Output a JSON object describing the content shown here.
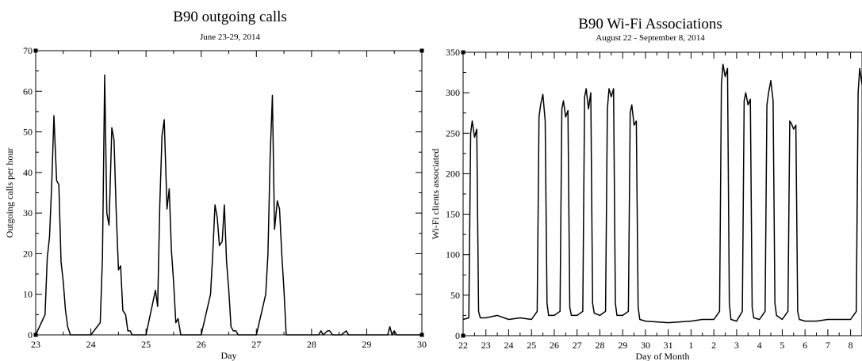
{
  "chart_data": [
    {
      "type": "line",
      "title": "B90 outgoing calls",
      "subtitle": "June 23-29, 2014",
      "xlabel": "Day",
      "ylabel": "Outgoing calls per hour",
      "xlim": [
        23,
        30
      ],
      "ylim": [
        0,
        70
      ],
      "grid": false,
      "x_ticks": [
        23,
        24,
        25,
        26,
        27,
        28,
        29,
        30
      ],
      "x_tick_labels": [
        "23",
        "24",
        "25",
        "26",
        "27",
        "28",
        "29",
        "30"
      ],
      "y_ticks": [
        0,
        10,
        20,
        30,
        40,
        50,
        60,
        70
      ],
      "y_tick_labels": [
        "0",
        "10",
        "20",
        "30",
        "40",
        "50",
        "60",
        "70"
      ],
      "series": [
        {
          "x": [
            23.0,
            23.17,
            23.21,
            23.25,
            23.29,
            23.33,
            23.38,
            23.42,
            23.46,
            23.5,
            23.54,
            23.58,
            23.63,
            23.67,
            23.71,
            23.75,
            23.79,
            24.0,
            24.17,
            24.21,
            24.25,
            24.29,
            24.33,
            24.38,
            24.42,
            24.46,
            24.5,
            24.54,
            24.58,
            24.63,
            24.67,
            24.71,
            24.75,
            24.79,
            24.83,
            25.0,
            25.17,
            25.21,
            25.25,
            25.29,
            25.33,
            25.38,
            25.42,
            25.46,
            25.5,
            25.54,
            25.58,
            25.63,
            25.67,
            25.71,
            25.75,
            26.0,
            26.17,
            26.21,
            26.25,
            26.29,
            26.33,
            26.38,
            26.42,
            26.46,
            26.5,
            26.54,
            26.58,
            26.63,
            26.67,
            26.71,
            26.75,
            26.79,
            27.0,
            27.17,
            27.21,
            27.25,
            27.29,
            27.33,
            27.38,
            27.42,
            27.46,
            27.5,
            27.54,
            27.58,
            27.63,
            27.67,
            27.71,
            27.75,
            28.0,
            28.13,
            28.17,
            28.21,
            28.29,
            28.33,
            28.38,
            28.42,
            28.46,
            28.5,
            28.54,
            28.63,
            28.67,
            28.71,
            28.75,
            29.0,
            29.38,
            29.42,
            29.46,
            29.5,
            29.54,
            29.58,
            30.0
          ],
          "y": [
            0,
            5,
            19,
            24,
            37,
            54,
            38,
            37,
            18,
            13,
            6,
            2,
            0,
            0,
            0,
            0,
            0,
            0,
            3,
            19,
            64,
            30,
            27,
            51,
            48,
            30,
            16,
            17,
            6,
            5,
            1,
            1,
            0,
            0,
            0,
            0,
            11,
            7,
            32,
            49,
            53,
            31,
            36,
            21,
            13,
            3,
            4,
            0,
            0,
            0,
            0,
            0,
            10,
            20,
            32,
            29,
            22,
            23,
            32,
            18,
            11,
            2,
            1,
            1,
            0,
            0,
            0,
            0,
            0,
            10,
            20,
            44,
            59,
            26,
            33,
            31,
            20,
            11,
            0,
            0,
            0,
            0,
            0,
            0,
            0,
            0,
            1,
            0,
            1,
            1,
            0,
            0,
            0,
            0,
            0,
            1,
            0,
            0,
            0,
            0,
            0,
            2,
            0,
            1,
            0,
            0,
            0
          ]
        }
      ]
    },
    {
      "type": "line",
      "title": "B90 Wi-Fi Associations",
      "subtitle": "August 22 - September 8, 2014",
      "xlabel": "Day of Month",
      "ylabel": "Wi-Fi clients associated",
      "xlim": [
        0,
        17.5
      ],
      "ylim": [
        0,
        350
      ],
      "grid": false,
      "x_ticks": [
        0,
        1,
        2,
        3,
        4,
        5,
        6,
        7,
        8,
        9,
        10,
        11,
        12,
        13,
        14,
        15,
        16,
        17
      ],
      "x_tick_labels": [
        "22",
        "23",
        "24",
        "25",
        "26",
        "27",
        "28",
        "29",
        "30",
        "31",
        "1",
        "2",
        "3",
        "4",
        "5",
        "6",
        "7",
        "8"
      ],
      "y_ticks": [
        0,
        50,
        100,
        150,
        200,
        250,
        300,
        350
      ],
      "y_tick_labels": [
        "0",
        "50",
        "100",
        "150",
        "200",
        "250",
        "300",
        "350"
      ],
      "series": [
        {
          "x": [
            0.0,
            0.25,
            0.33,
            0.4,
            0.5,
            0.6,
            0.68,
            0.75,
            1.0,
            1.5,
            2.0,
            2.5,
            3.0,
            3.25,
            3.33,
            3.4,
            3.5,
            3.6,
            3.68,
            3.75,
            4.0,
            4.25,
            4.33,
            4.4,
            4.5,
            4.6,
            4.68,
            4.75,
            5.0,
            5.25,
            5.33,
            5.4,
            5.5,
            5.6,
            5.68,
            5.75,
            6.0,
            6.25,
            6.33,
            6.4,
            6.5,
            6.6,
            6.68,
            6.75,
            7.0,
            7.25,
            7.33,
            7.4,
            7.5,
            7.6,
            7.68,
            7.75,
            8.0,
            8.5,
            9.0,
            9.5,
            10.0,
            10.5,
            11.0,
            11.25,
            11.33,
            11.4,
            11.5,
            11.6,
            11.68,
            11.75,
            12.0,
            12.25,
            12.33,
            12.4,
            12.5,
            12.6,
            12.68,
            12.75,
            13.0,
            13.25,
            13.33,
            13.4,
            13.5,
            13.6,
            13.68,
            13.75,
            14.0,
            14.25,
            14.33,
            14.4,
            14.5,
            14.6,
            14.68,
            14.75,
            15.0,
            15.5,
            16.0,
            16.5,
            17.0,
            17.25,
            17.33,
            17.4,
            17.5
          ],
          "y": [
            20,
            22,
            250,
            265,
            245,
            255,
            30,
            22,
            22,
            25,
            20,
            22,
            20,
            30,
            270,
            285,
            298,
            265,
            40,
            25,
            25,
            30,
            280,
            290,
            270,
            278,
            35,
            25,
            25,
            30,
            295,
            305,
            280,
            300,
            40,
            28,
            25,
            30,
            280,
            305,
            295,
            305,
            40,
            25,
            25,
            30,
            275,
            285,
            260,
            265,
            35,
            20,
            18,
            17,
            16,
            17,
            18,
            20,
            20,
            30,
            310,
            335,
            320,
            330,
            40,
            20,
            18,
            30,
            290,
            300,
            285,
            292,
            35,
            22,
            20,
            30,
            285,
            300,
            315,
            290,
            40,
            25,
            20,
            30,
            265,
            262,
            255,
            260,
            30,
            20,
            18,
            18,
            20,
            20,
            20,
            30,
            300,
            330,
            310
          ]
        }
      ]
    }
  ]
}
